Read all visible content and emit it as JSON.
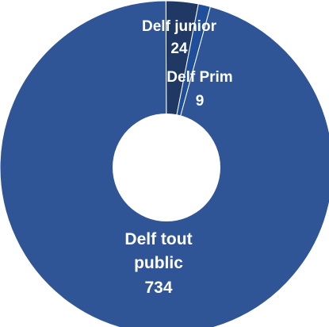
{
  "chart_data": {
    "type": "pie",
    "donut": true,
    "categories": [
      "Delf tout public",
      "Delf junior",
      "Delf Prim"
    ],
    "values": [
      734,
      24,
      9
    ],
    "colors": [
      "#2f5597",
      "#1f3864",
      "#1f4e9a"
    ],
    "legend": "none",
    "title": ""
  }
}
